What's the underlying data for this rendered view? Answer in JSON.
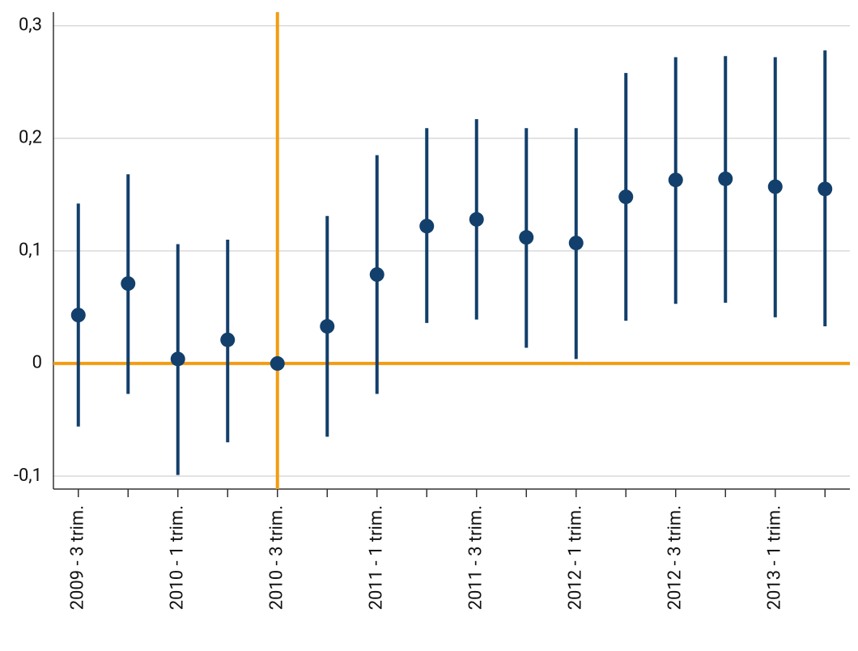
{
  "chart_data": {
    "type": "errorbar",
    "categories": [
      "2009 - 3 trim.",
      null,
      "2010 - 1 trim.",
      null,
      "2010 - 3 trim.",
      null,
      "2011 - 1 trim.",
      null,
      "2011 - 3 trim.",
      null,
      "2012 - 1 trim.",
      null,
      "2012 - 3 trim.",
      null,
      "2013 - 1 trim.",
      null
    ],
    "series": [
      {
        "color": "#123f6b",
        "values": [
          0.043,
          0.071,
          0.004,
          0.021,
          0,
          0.033,
          0.079,
          0.122,
          0.128,
          0.112,
          0.107,
          0.148,
          0.163,
          0.164,
          0.157,
          0.155
        ],
        "low": [
          -0.056,
          -0.027,
          -0.099,
          -0.07,
          null,
          -0.065,
          -0.027,
          0.036,
          0.039,
          0.014,
          0.004,
          0.038,
          0.053,
          0.054,
          0.041,
          0.033
        ],
        "high": [
          0.142,
          0.168,
          0.106,
          0.11,
          null,
          0.131,
          0.185,
          0.209,
          0.217,
          0.209,
          0.209,
          0.258,
          0.272,
          0.273,
          0.272,
          0.278
        ]
      }
    ],
    "ylim": [
      -0.1115,
      0.312
    ],
    "yticks": [
      {
        "value": -0.1,
        "label": "-0,1"
      },
      0,
      {
        "value": 0.1,
        "label": "0,1"
      },
      {
        "value": 0.2,
        "label": "0,2"
      },
      {
        "value": 0.3,
        "label": "0,3"
      }
    ],
    "grid": true,
    "reference_color": "#f39c12",
    "hline": 0,
    "vline_category": "2010 - 3 trim."
  }
}
